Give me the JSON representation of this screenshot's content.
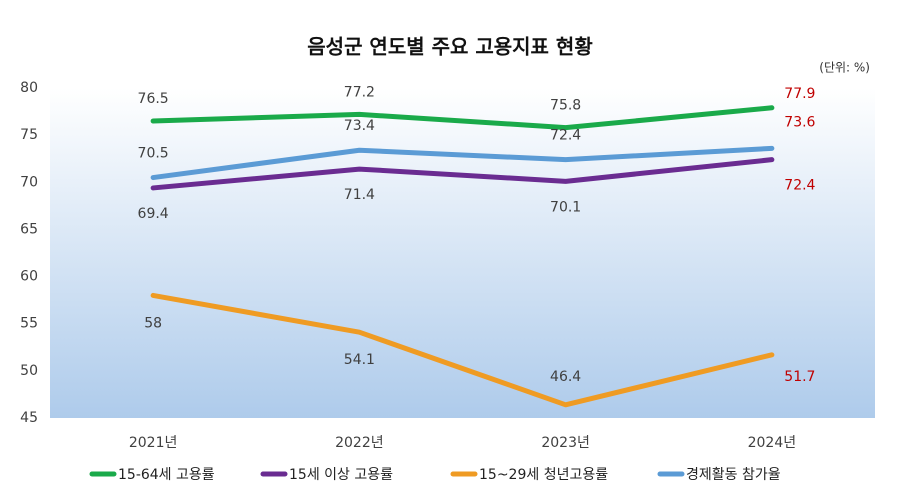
{
  "chart_data": {
    "type": "line",
    "title": "음성군 연도별 주요 고용지표 현황",
    "unit": "(단위: %)",
    "categories": [
      "2021년",
      "2022년",
      "2023년",
      "2024년"
    ],
    "series": [
      {
        "name": "15-64세 고용률",
        "color": "#1aaa4a",
        "values": [
          76.5,
          77.2,
          75.8,
          77.9
        ]
      },
      {
        "name": "15세 이상 고용률",
        "color": "#6a2c91",
        "values": [
          69.4,
          71.4,
          70.1,
          72.4
        ]
      },
      {
        "name": "15~29세 청년고용률",
        "color": "#ef9b23",
        "values": [
          58,
          54.1,
          46.4,
          51.7
        ]
      },
      {
        "name": "경제활동 참가율",
        "color": "#5b9bd5",
        "values": [
          70.5,
          73.4,
          72.4,
          73.6
        ]
      }
    ],
    "ylim": [
      45,
      80
    ],
    "yticks": [
      45,
      50,
      55,
      60,
      65,
      70,
      75,
      80
    ],
    "last_label_color": "#c00000",
    "legend": "bottom"
  }
}
